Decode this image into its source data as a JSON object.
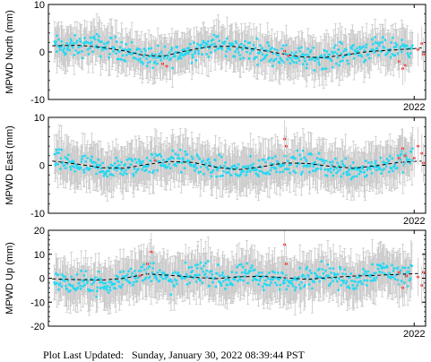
{
  "footer": {
    "label": "Plot Last Updated:",
    "timestamp": "Sunday, January 30, 2022 08:39:44 PST"
  },
  "colors": {
    "point": "#27d8f2",
    "recent_point": "#ff1a1a",
    "error_bar": "#c8c8c8",
    "trend_line": "#000000",
    "frame": "#000000"
  },
  "chart_data": [
    {
      "type": "scatter",
      "ylabel": "MPWD North (mm)",
      "ylim": [
        -10,
        10
      ],
      "yticks": [
        -10,
        0,
        10
      ],
      "xlim": [
        2017.2,
        2022.15
      ],
      "xtick_label": "2022",
      "xtick_value": 2022.0,
      "error_bar_halfwidth_mm": 3.5,
      "series": [
        {
          "values": [
            [
              2017.3,
              1.2
            ],
            [
              2017.5,
              0.9
            ],
            [
              2017.8,
              1.6
            ],
            [
              2018.0,
              1.1
            ],
            [
              2018.2,
              0.4
            ],
            [
              2018.4,
              -0.6
            ],
            [
              2018.6,
              -1.5
            ],
            [
              2018.8,
              -0.9
            ],
            [
              2019.0,
              0.2
            ],
            [
              2019.2,
              1.0
            ],
            [
              2019.4,
              1.5
            ],
            [
              2019.6,
              0.8
            ],
            [
              2019.8,
              0.5
            ],
            [
              2020.0,
              0.1
            ],
            [
              2020.2,
              -0.4
            ],
            [
              2020.4,
              -0.9
            ],
            [
              2020.6,
              -1.4
            ],
            [
              2020.8,
              -1.2
            ],
            [
              2021.0,
              -0.6
            ],
            [
              2021.2,
              0.1
            ],
            [
              2021.4,
              0.4
            ],
            [
              2021.6,
              0.6
            ],
            [
              2021.8,
              0.8
            ],
            [
              2021.95,
              1.4
            ]
          ]
        },
        {
          "name": "",
          "values": [
            [
              2018.7,
              -2.5
            ],
            [
              2018.75,
              -3.0
            ],
            [
              2020.3,
              0.2
            ],
            [
              2020.35,
              -0.8
            ],
            [
              2021.8,
              -2.0
            ],
            [
              2021.85,
              -3.5
            ],
            [
              2021.88,
              -2.8
            ],
            [
              2022.05,
              0.5
            ],
            [
              2022.1,
              1.8
            ],
            [
              2022.12,
              -0.5
            ]
          ]
        }
      ],
      "trend": [
        [
          2017.25,
          1.3
        ],
        [
          2017.6,
          1.4
        ],
        [
          2017.9,
          1.0
        ],
        [
          2018.2,
          0.2
        ],
        [
          2018.45,
          -0.7
        ],
        [
          2018.7,
          -0.9
        ],
        [
          2019.0,
          0.2
        ],
        [
          2019.3,
          1.1
        ],
        [
          2019.6,
          1.2
        ],
        [
          2019.9,
          0.6
        ],
        [
          2020.2,
          -0.2
        ],
        [
          2020.5,
          -1.0
        ],
        [
          2020.8,
          -1.2
        ],
        [
          2021.1,
          -0.6
        ],
        [
          2021.4,
          0.1
        ],
        [
          2021.7,
          0.4
        ],
        [
          2022.0,
          0.7
        ],
        [
          2022.1,
          0.9
        ]
      ]
    },
    {
      "type": "scatter",
      "ylabel": "MPWD East (mm)",
      "ylim": [
        -10,
        10
      ],
      "yticks": [
        -10,
        0,
        10
      ],
      "xlim": [
        2017.2,
        2022.15
      ],
      "xtick_label": "2022",
      "xtick_value": 2022.0,
      "error_bar_halfwidth_mm": 4.0,
      "series": [
        {
          "values": [
            [
              2017.3,
              1.0
            ],
            [
              2017.5,
              0.2
            ],
            [
              2017.8,
              -0.5
            ],
            [
              2018.0,
              -0.8
            ],
            [
              2018.2,
              -0.6
            ],
            [
              2018.4,
              0.1
            ],
            [
              2018.6,
              0.6
            ],
            [
              2018.8,
              0.9
            ],
            [
              2019.0,
              0.8
            ],
            [
              2019.2,
              0.2
            ],
            [
              2019.4,
              -0.6
            ],
            [
              2019.6,
              -1.0
            ],
            [
              2019.8,
              -1.1
            ],
            [
              2020.0,
              -0.5
            ],
            [
              2020.2,
              0.2
            ],
            [
              2020.4,
              0.7
            ],
            [
              2020.6,
              0.4
            ],
            [
              2020.8,
              0.0
            ],
            [
              2021.0,
              -0.5
            ],
            [
              2021.2,
              -0.8
            ],
            [
              2021.4,
              -0.4
            ],
            [
              2021.6,
              0.2
            ],
            [
              2021.8,
              0.8
            ],
            [
              2021.95,
              1.1
            ]
          ]
        },
        {
          "name": "",
          "values": [
            [
              2018.6,
              1.0
            ],
            [
              2020.3,
              5.5
            ],
            [
              2020.32,
              4.0
            ],
            [
              2021.8,
              1.5
            ],
            [
              2021.85,
              3.5
            ],
            [
              2021.88,
              2.0
            ],
            [
              2022.0,
              1.5
            ],
            [
              2022.05,
              4.0
            ],
            [
              2022.1,
              2.5
            ],
            [
              2022.12,
              0.5
            ]
          ]
        }
      ],
      "trend": [
        [
          2017.25,
          0.9
        ],
        [
          2017.6,
          0.2
        ],
        [
          2017.9,
          -0.5
        ],
        [
          2018.2,
          -0.6
        ],
        [
          2018.5,
          0.2
        ],
        [
          2018.8,
          0.8
        ],
        [
          2019.1,
          0.6
        ],
        [
          2019.4,
          -0.4
        ],
        [
          2019.7,
          -0.9
        ],
        [
          2020.0,
          -0.3
        ],
        [
          2020.3,
          0.5
        ],
        [
          2020.6,
          0.4
        ],
        [
          2020.9,
          -0.2
        ],
        [
          2021.2,
          -0.6
        ],
        [
          2021.5,
          -0.1
        ],
        [
          2021.8,
          0.6
        ],
        [
          2022.1,
          0.9
        ]
      ]
    },
    {
      "type": "scatter",
      "ylabel": "MPWD Up (mm)",
      "ylim": [
        -20,
        20
      ],
      "yticks": [
        -20,
        -10,
        0,
        10,
        20
      ],
      "xlim": [
        2017.2,
        2022.15
      ],
      "xtick_label": "2022",
      "xtick_value": 2022.0,
      "error_bar_halfwidth_mm": 8.0,
      "series": [
        {
          "values": [
            [
              2017.3,
              -1.0
            ],
            [
              2017.5,
              -3.0
            ],
            [
              2017.8,
              -1.5
            ],
            [
              2018.0,
              -4.0
            ],
            [
              2018.2,
              0.5
            ],
            [
              2018.4,
              2.0
            ],
            [
              2018.6,
              3.0
            ],
            [
              2018.8,
              -2.0
            ],
            [
              2019.0,
              1.0
            ],
            [
              2019.2,
              3.0
            ],
            [
              2019.4,
              0.5
            ],
            [
              2019.6,
              -1.0
            ],
            [
              2019.8,
              2.0
            ],
            [
              2020.0,
              0.0
            ],
            [
              2020.2,
              -0.5
            ],
            [
              2020.4,
              -2.5
            ],
            [
              2020.6,
              1.0
            ],
            [
              2020.8,
              3.0
            ],
            [
              2021.0,
              0.0
            ],
            [
              2021.2,
              -1.5
            ],
            [
              2021.4,
              2.0
            ],
            [
              2021.6,
              4.0
            ],
            [
              2021.8,
              1.0
            ],
            [
              2021.95,
              2.0
            ]
          ]
        },
        {
          "name": "",
          "values": [
            [
              2018.5,
              6.0
            ],
            [
              2018.55,
              11.0
            ],
            [
              2018.4,
              1.0
            ],
            [
              2020.3,
              14.0
            ],
            [
              2020.32,
              6.0
            ],
            [
              2021.8,
              2.5
            ],
            [
              2021.85,
              -4.0
            ],
            [
              2021.9,
              1.0
            ],
            [
              2022.05,
              0.5
            ],
            [
              2022.1,
              -3.0
            ],
            [
              2022.12,
              2.5
            ]
          ]
        }
      ],
      "trend": [
        [
          2017.25,
          -0.3
        ],
        [
          2017.6,
          -0.6
        ],
        [
          2017.9,
          -0.8
        ],
        [
          2018.2,
          0.0
        ],
        [
          2018.5,
          1.8
        ],
        [
          2018.8,
          1.2
        ],
        [
          2019.1,
          0.4
        ],
        [
          2019.4,
          -0.2
        ],
        [
          2019.7,
          0.6
        ],
        [
          2020.0,
          0.8
        ],
        [
          2020.3,
          0.2
        ],
        [
          2020.6,
          -0.5
        ],
        [
          2020.9,
          0.3
        ],
        [
          2021.2,
          0.9
        ],
        [
          2021.5,
          1.2
        ],
        [
          2021.8,
          1.6
        ],
        [
          2022.1,
          2.0
        ]
      ]
    }
  ]
}
